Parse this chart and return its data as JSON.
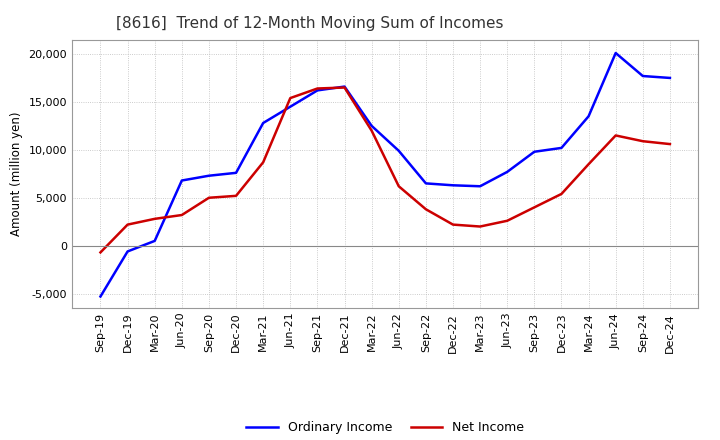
{
  "title": "[8616]  Trend of 12-Month Moving Sum of Incomes",
  "ylabel": "Amount (million yen)",
  "background_color": "#ffffff",
  "grid_color": "#bbbbbb",
  "x_labels": [
    "Sep-19",
    "Dec-19",
    "Mar-20",
    "Jun-20",
    "Sep-20",
    "Dec-20",
    "Mar-21",
    "Jun-21",
    "Sep-21",
    "Dec-21",
    "Mar-22",
    "Jun-22",
    "Sep-22",
    "Dec-22",
    "Mar-23",
    "Jun-23",
    "Sep-23",
    "Dec-23",
    "Mar-24",
    "Jun-24",
    "Sep-24",
    "Dec-24"
  ],
  "ordinary_income": [
    -5300,
    -600,
    500,
    6800,
    7300,
    7600,
    12800,
    14500,
    16200,
    16600,
    12500,
    9900,
    6500,
    6300,
    6200,
    7700,
    9800,
    10200,
    13500,
    20100,
    17700,
    17500
  ],
  "net_income": [
    -700,
    2200,
    2800,
    3200,
    5000,
    5200,
    8700,
    15400,
    16400,
    16500,
    12000,
    6200,
    3800,
    2200,
    2000,
    2600,
    4000,
    5400,
    8500,
    11500,
    10900,
    10600
  ],
  "ordinary_color": "#0000ff",
  "net_color": "#cc0000",
  "ylim": [
    -6500,
    21500
  ],
  "yticks": [
    -5000,
    0,
    5000,
    10000,
    15000,
    20000
  ],
  "line_width": 1.8,
  "title_fontsize": 11,
  "title_color": "#333333",
  "legend_fontsize": 9,
  "ylabel_fontsize": 8.5,
  "tick_fontsize": 8
}
